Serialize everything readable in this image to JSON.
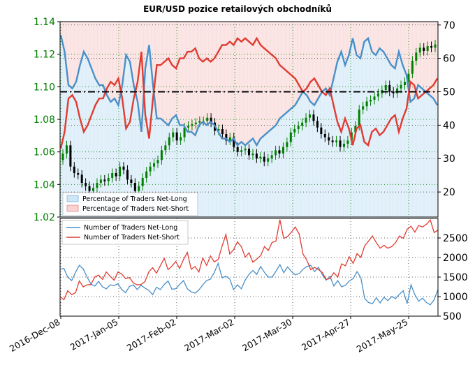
{
  "chart_data": [
    {
      "type": "candlestick",
      "title": "EUR/USD pozice retailových obchodníků",
      "left_axis": {
        "ylim": [
          1.02,
          1.14
        ],
        "ticks": [
          "1.02",
          "1.04",
          "1.06",
          "1.08",
          "1.10",
          "1.12",
          "1.14"
        ],
        "color": "#008000"
      },
      "right_axis": {
        "ylim": [
          12.5,
          71
        ],
        "ticks": [
          "20",
          "30",
          "40",
          "50",
          "60",
          "70"
        ]
      },
      "x_ticks": [
        "2016-Dec-08",
        "2017-Jan-05",
        "2017-Feb-02",
        "2017-Mar-02",
        "2017-Mar-30",
        "2017-Apr-27",
        "2017-May-25"
      ],
      "reference_line": {
        "value": 50,
        "style": "dash-dot",
        "color": "#000000"
      },
      "grid": true,
      "legend": {
        "position": "bottom-left",
        "entries": [
          "Percentage of Traders Net-Long",
          "Percentage of Traders Net-Short"
        ]
      },
      "colors": {
        "up": "#008000",
        "down": "#000000",
        "long": "#4a90c8",
        "short": "#e03c31",
        "long_fill": "#cfe6f6",
        "short_fill": "#f9d3d3"
      },
      "ohlc_close": [
        1.059,
        1.064,
        1.051,
        1.047,
        1.046,
        1.041,
        1.039,
        1.036,
        1.038,
        1.041,
        1.043,
        1.042,
        1.044,
        1.047,
        1.045,
        1.051,
        1.049,
        1.043,
        1.041,
        1.036,
        1.039,
        1.044,
        1.048,
        1.051,
        1.053,
        1.055,
        1.061,
        1.064,
        1.069,
        1.072,
        1.067,
        1.069,
        1.075,
        1.076,
        1.077,
        1.078,
        1.079,
        1.079,
        1.081,
        1.078,
        1.073,
        1.074,
        1.071,
        1.067,
        1.069,
        1.063,
        1.06,
        1.061,
        1.062,
        1.058,
        1.059,
        1.056,
        1.057,
        1.054,
        1.056,
        1.058,
        1.061,
        1.059,
        1.063,
        1.066,
        1.072,
        1.074,
        1.076,
        1.078,
        1.081,
        1.083,
        1.079,
        1.075,
        1.071,
        1.069,
        1.067,
        1.066,
        1.067,
        1.063,
        1.065,
        1.067,
        1.072,
        1.076,
        1.086,
        1.088,
        1.091,
        1.092,
        1.094,
        1.096,
        1.098,
        1.101,
        1.097,
        1.096,
        1.099,
        1.101,
        1.103,
        1.108,
        1.116,
        1.121,
        1.124,
        1.122,
        1.125,
        1.124,
        1.126
      ],
      "net_long_pct": [
        67,
        62,
        52,
        51,
        53,
        58,
        62,
        60,
        57,
        54,
        52,
        52,
        49,
        47,
        48,
        46,
        52,
        61,
        59,
        52,
        47,
        38,
        57,
        64,
        52,
        42,
        42,
        41,
        40,
        42,
        43,
        40,
        40,
        38,
        38,
        37,
        40,
        41,
        40,
        41,
        40,
        38,
        36,
        36,
        35,
        36,
        34,
        35,
        34,
        35,
        36,
        34,
        36,
        37,
        38,
        39,
        40,
        42,
        43,
        44,
        45,
        46,
        48,
        50,
        49,
        47,
        46,
        48,
        50,
        51,
        49,
        54,
        59,
        62,
        58,
        61,
        66,
        61,
        60,
        65,
        66,
        62,
        61,
        63,
        62,
        60,
        58,
        57,
        62,
        58,
        55,
        47,
        48,
        52,
        51,
        50,
        49,
        48,
        46
      ],
      "net_short_pct": [
        33,
        38,
        48,
        49,
        47,
        42,
        38,
        40,
        43,
        46,
        48,
        48,
        51,
        53,
        52,
        54,
        48,
        39,
        41,
        48,
        53,
        62,
        43,
        36,
        48,
        58,
        58,
        59,
        60,
        58,
        57,
        60,
        60,
        62,
        62,
        63,
        60,
        59,
        60,
        59,
        60,
        62,
        64,
        64,
        65,
        64,
        66,
        65,
        66,
        65,
        64,
        66,
        64,
        63,
        62,
        61,
        60,
        58,
        57,
        56,
        55,
        54,
        52,
        50,
        51,
        53,
        54,
        52,
        50,
        49,
        51,
        46,
        41,
        38,
        42,
        39,
        34,
        39,
        40,
        35,
        34,
        38,
        39,
        37,
        38,
        40,
        42,
        43,
        38,
        42,
        45,
        53,
        52,
        48,
        49,
        50,
        51,
        52,
        54
      ]
    },
    {
      "type": "line",
      "ylim": [
        500,
        3000
      ],
      "y_ticks": [
        "500",
        "1000",
        "1500",
        "2000",
        "2500"
      ],
      "legend": {
        "position": "top-left"
      },
      "series": [
        {
          "name": "Number of Traders Net-Long",
          "color": "#4a90c8",
          "values": [
            1700,
            1720,
            1500,
            1410,
            1620,
            1800,
            1710,
            1500,
            1320,
            1270,
            1390,
            1250,
            1200,
            1300,
            1280,
            1330,
            1180,
            1100,
            1260,
            1300,
            1180,
            1290,
            1220,
            1160,
            1050,
            1240,
            1180,
            1310,
            1400,
            1190,
            1200,
            1310,
            1410,
            1200,
            1120,
            1090,
            1170,
            1300,
            1410,
            1450,
            1620,
            1850,
            1480,
            1520,
            1450,
            1180,
            1300,
            1200,
            1420,
            1570,
            1670,
            1570,
            1770,
            1620,
            1500,
            1500,
            1650,
            1820,
            1610,
            1760,
            1640,
            1560,
            1590,
            1700,
            1770,
            1800,
            1640,
            1750,
            1560,
            1420,
            1520,
            1270,
            1410,
            1250,
            1290,
            1400,
            1460,
            1640,
            1480,
            950,
            850,
            820,
            970,
            840,
            980,
            900,
            1000,
            950,
            1060,
            1150,
            820,
            1300,
            1050,
            880,
            960,
            850,
            790,
            920,
            1180
          ]
        },
        {
          "name": "Number of Traders Net-Short",
          "color": "#e03c31",
          "values": [
            1000,
            920,
            1150,
            1050,
            1100,
            1400,
            1250,
            1300,
            1310,
            1500,
            1550,
            1440,
            1630,
            1520,
            1420,
            1630,
            1580,
            1460,
            1490,
            1350,
            1300,
            1310,
            1380,
            1630,
            1740,
            1600,
            1790,
            1980,
            1690,
            1780,
            1900,
            1720,
            1950,
            2130,
            1700,
            1770,
            1630,
            1990,
            1800,
            2040,
            1890,
            1950,
            2290,
            2590,
            2090,
            2200,
            2400,
            2280,
            2010,
            2120,
            1880,
            1960,
            2050,
            2280,
            2180,
            2390,
            2420,
            2970,
            2490,
            2540,
            2650,
            2780,
            2600,
            2090,
            1930,
            1690,
            1750,
            1690,
            1620,
            1440,
            1460,
            1610,
            1500,
            1840,
            1790,
            2020,
            1850,
            2100,
            2000,
            2300,
            2420,
            2550,
            2380,
            2240,
            2310,
            2240,
            2280,
            2380,
            2550,
            2490,
            2720,
            2800,
            2650,
            2820,
            2780,
            2850,
            2960,
            2640,
            2700
          ]
        }
      ]
    }
  ]
}
